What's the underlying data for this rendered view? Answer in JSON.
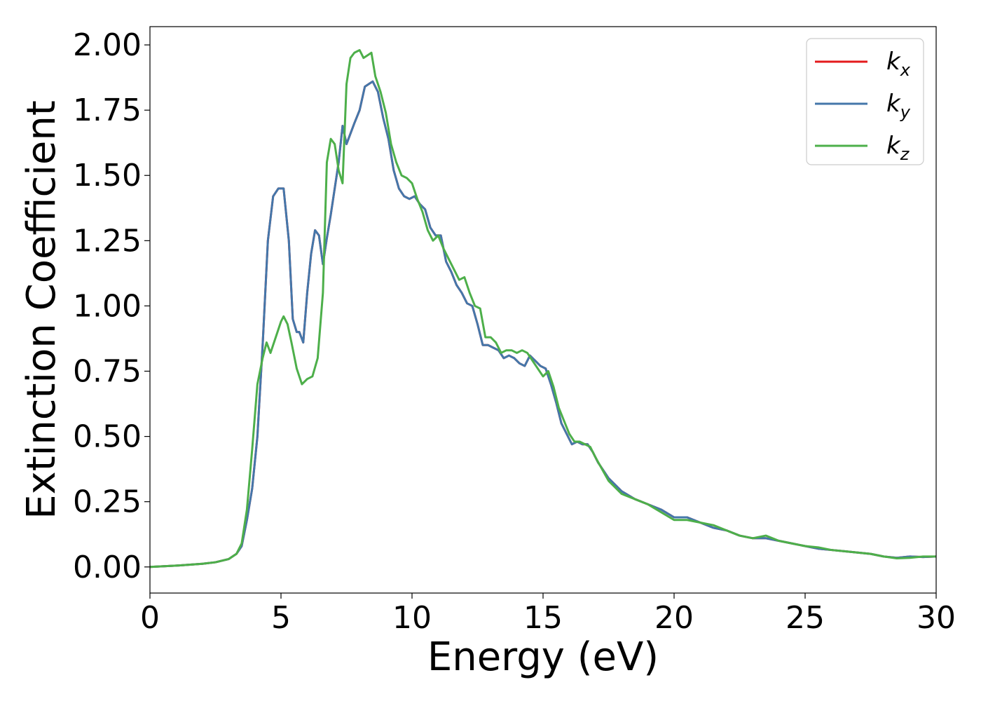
{
  "chart_data": {
    "type": "line",
    "xlabel": "Energy (eV)",
    "ylabel": "Extinction Coefficient",
    "xlim": [
      0,
      30
    ],
    "ylim": [
      -0.1,
      2.07
    ],
    "xticks": [
      0,
      5,
      10,
      15,
      20,
      25,
      30
    ],
    "xtick_labels": [
      "0",
      "5",
      "10",
      "15",
      "20",
      "25",
      "30"
    ],
    "yticks": [
      0.0,
      0.25,
      0.5,
      0.75,
      1.0,
      1.25,
      1.5,
      1.75,
      2.0
    ],
    "ytick_labels": [
      "0.00",
      "0.25",
      "0.50",
      "0.75",
      "1.00",
      "1.25",
      "1.50",
      "1.75",
      "2.00"
    ],
    "grid": false,
    "legend_position": "top-right",
    "series": [
      {
        "name": "k",
        "subscript": "x",
        "color": "#e41a1c",
        "x": [
          0,
          1,
          2,
          2.5,
          3,
          3.3,
          3.5,
          3.7,
          3.9,
          4.1,
          4.3,
          4.5,
          4.7,
          4.9,
          5.1,
          5.3,
          5.45,
          5.6,
          5.7,
          5.85,
          6.0,
          6.15,
          6.3,
          6.45,
          6.6,
          6.75,
          6.9,
          7.05,
          7.2,
          7.35,
          7.5,
          7.65,
          7.8,
          8.0,
          8.2,
          8.35,
          8.5,
          8.7,
          8.9,
          9.1,
          9.3,
          9.5,
          9.7,
          9.9,
          10.1,
          10.3,
          10.5,
          10.7,
          10.9,
          11.1,
          11.3,
          11.5,
          11.7,
          11.9,
          12.1,
          12.3,
          12.5,
          12.7,
          12.9,
          13.1,
          13.3,
          13.5,
          13.7,
          13.9,
          14.1,
          14.3,
          14.5,
          14.7,
          14.9,
          15.1,
          15.3,
          15.5,
          15.7,
          15.9,
          16.1,
          16.3,
          16.5,
          16.7,
          16.9,
          17.1,
          17.5,
          18.0,
          18.5,
          19.0,
          19.5,
          20.0,
          20.5,
          21.0,
          21.5,
          22.0,
          22.5,
          23.0,
          23.5,
          24.0,
          24.5,
          25.0,
          25.5,
          26.0,
          26.5,
          27.0,
          27.5,
          28.0,
          28.5,
          29.0,
          29.5,
          30
        ],
        "y": [
          0.0,
          0.005,
          0.012,
          0.018,
          0.03,
          0.05,
          0.08,
          0.18,
          0.3,
          0.5,
          0.85,
          1.25,
          1.42,
          1.45,
          1.45,
          1.25,
          0.95,
          0.9,
          0.9,
          0.86,
          1.05,
          1.2,
          1.29,
          1.27,
          1.16,
          1.26,
          1.35,
          1.45,
          1.55,
          1.69,
          1.62,
          1.66,
          1.7,
          1.75,
          1.84,
          1.85,
          1.86,
          1.82,
          1.72,
          1.64,
          1.52,
          1.45,
          1.42,
          1.41,
          1.42,
          1.39,
          1.37,
          1.3,
          1.27,
          1.27,
          1.17,
          1.13,
          1.08,
          1.05,
          1.01,
          1.0,
          0.93,
          0.85,
          0.85,
          0.84,
          0.83,
          0.8,
          0.81,
          0.8,
          0.78,
          0.77,
          0.81,
          0.79,
          0.77,
          0.76,
          0.7,
          0.63,
          0.55,
          0.51,
          0.47,
          0.48,
          0.47,
          0.47,
          0.44,
          0.4,
          0.34,
          0.29,
          0.26,
          0.24,
          0.22,
          0.19,
          0.19,
          0.17,
          0.15,
          0.14,
          0.12,
          0.11,
          0.11,
          0.1,
          0.09,
          0.08,
          0.07,
          0.065,
          0.06,
          0.055,
          0.05,
          0.04,
          0.035,
          0.04,
          0.038,
          0.04
        ]
      },
      {
        "name": "k",
        "subscript": "y",
        "color": "#4477aa",
        "x": [
          0,
          1,
          2,
          2.5,
          3,
          3.3,
          3.5,
          3.7,
          3.9,
          4.1,
          4.3,
          4.5,
          4.7,
          4.9,
          5.1,
          5.3,
          5.45,
          5.6,
          5.7,
          5.85,
          6.0,
          6.15,
          6.3,
          6.45,
          6.6,
          6.75,
          6.9,
          7.05,
          7.2,
          7.35,
          7.5,
          7.65,
          7.8,
          8.0,
          8.2,
          8.35,
          8.5,
          8.7,
          8.9,
          9.1,
          9.3,
          9.5,
          9.7,
          9.9,
          10.1,
          10.3,
          10.5,
          10.7,
          10.9,
          11.1,
          11.3,
          11.5,
          11.7,
          11.9,
          12.1,
          12.3,
          12.5,
          12.7,
          12.9,
          13.1,
          13.3,
          13.5,
          13.7,
          13.9,
          14.1,
          14.3,
          14.5,
          14.7,
          14.9,
          15.1,
          15.3,
          15.5,
          15.7,
          15.9,
          16.1,
          16.3,
          16.5,
          16.7,
          16.9,
          17.1,
          17.5,
          18.0,
          18.5,
          19.0,
          19.5,
          20.0,
          20.5,
          21.0,
          21.5,
          22.0,
          22.5,
          23.0,
          23.5,
          24.0,
          24.5,
          25.0,
          25.5,
          26.0,
          26.5,
          27.0,
          27.5,
          28.0,
          28.5,
          29.0,
          29.5,
          30
        ],
        "y": [
          0.0,
          0.005,
          0.012,
          0.018,
          0.03,
          0.05,
          0.08,
          0.18,
          0.3,
          0.5,
          0.85,
          1.25,
          1.42,
          1.45,
          1.45,
          1.25,
          0.95,
          0.9,
          0.9,
          0.86,
          1.05,
          1.2,
          1.29,
          1.27,
          1.16,
          1.26,
          1.35,
          1.45,
          1.55,
          1.69,
          1.62,
          1.66,
          1.7,
          1.75,
          1.84,
          1.85,
          1.86,
          1.82,
          1.72,
          1.64,
          1.52,
          1.45,
          1.42,
          1.41,
          1.42,
          1.39,
          1.37,
          1.3,
          1.27,
          1.27,
          1.17,
          1.13,
          1.08,
          1.05,
          1.01,
          1.0,
          0.93,
          0.85,
          0.85,
          0.84,
          0.83,
          0.8,
          0.81,
          0.8,
          0.78,
          0.77,
          0.81,
          0.79,
          0.77,
          0.76,
          0.7,
          0.63,
          0.55,
          0.51,
          0.47,
          0.48,
          0.47,
          0.47,
          0.44,
          0.4,
          0.34,
          0.29,
          0.26,
          0.24,
          0.22,
          0.19,
          0.19,
          0.17,
          0.15,
          0.14,
          0.12,
          0.11,
          0.11,
          0.1,
          0.09,
          0.08,
          0.07,
          0.065,
          0.06,
          0.055,
          0.05,
          0.04,
          0.035,
          0.04,
          0.038,
          0.04
        ]
      },
      {
        "name": "k",
        "subscript": "z",
        "color": "#4daf4a",
        "x": [
          0,
          1,
          2,
          2.5,
          3,
          3.3,
          3.5,
          3.7,
          3.9,
          4.1,
          4.3,
          4.45,
          4.6,
          4.8,
          5.0,
          5.1,
          5.25,
          5.4,
          5.6,
          5.8,
          6.0,
          6.2,
          6.4,
          6.6,
          6.75,
          6.9,
          7.05,
          7.2,
          7.35,
          7.5,
          7.65,
          7.8,
          8.0,
          8.15,
          8.3,
          8.45,
          8.6,
          8.8,
          9.0,
          9.2,
          9.4,
          9.6,
          9.8,
          10.0,
          10.2,
          10.4,
          10.6,
          10.8,
          11.0,
          11.2,
          11.4,
          11.6,
          11.8,
          12.0,
          12.2,
          12.4,
          12.6,
          12.8,
          13.0,
          13.2,
          13.4,
          13.6,
          13.8,
          14.0,
          14.2,
          14.4,
          14.6,
          14.8,
          15.0,
          15.2,
          15.4,
          15.6,
          15.8,
          16.0,
          16.2,
          16.4,
          16.6,
          16.8,
          17.0,
          17.5,
          18.0,
          18.5,
          19.0,
          19.5,
          20.0,
          20.5,
          21.0,
          21.5,
          22.0,
          22.5,
          23.0,
          23.5,
          24.0,
          24.5,
          25.0,
          25.5,
          26.0,
          26.5,
          27.0,
          27.5,
          28.0,
          28.5,
          29.0,
          29.5,
          30
        ],
        "y": [
          0.0,
          0.005,
          0.012,
          0.018,
          0.03,
          0.05,
          0.09,
          0.22,
          0.45,
          0.7,
          0.8,
          0.86,
          0.82,
          0.88,
          0.94,
          0.96,
          0.93,
          0.86,
          0.76,
          0.7,
          0.72,
          0.73,
          0.8,
          1.05,
          1.55,
          1.64,
          1.62,
          1.52,
          1.47,
          1.85,
          1.95,
          1.97,
          1.98,
          1.95,
          1.96,
          1.97,
          1.88,
          1.82,
          1.74,
          1.62,
          1.55,
          1.5,
          1.49,
          1.47,
          1.41,
          1.36,
          1.29,
          1.25,
          1.27,
          1.22,
          1.18,
          1.14,
          1.1,
          1.11,
          1.05,
          1.0,
          0.99,
          0.88,
          0.88,
          0.86,
          0.82,
          0.83,
          0.83,
          0.82,
          0.83,
          0.82,
          0.79,
          0.76,
          0.73,
          0.75,
          0.69,
          0.61,
          0.56,
          0.51,
          0.48,
          0.48,
          0.47,
          0.46,
          0.42,
          0.33,
          0.28,
          0.26,
          0.24,
          0.21,
          0.18,
          0.18,
          0.17,
          0.16,
          0.14,
          0.12,
          0.11,
          0.12,
          0.1,
          0.09,
          0.08,
          0.075,
          0.065,
          0.06,
          0.055,
          0.05,
          0.04,
          0.033,
          0.035,
          0.04,
          0.04
        ]
      }
    ]
  }
}
